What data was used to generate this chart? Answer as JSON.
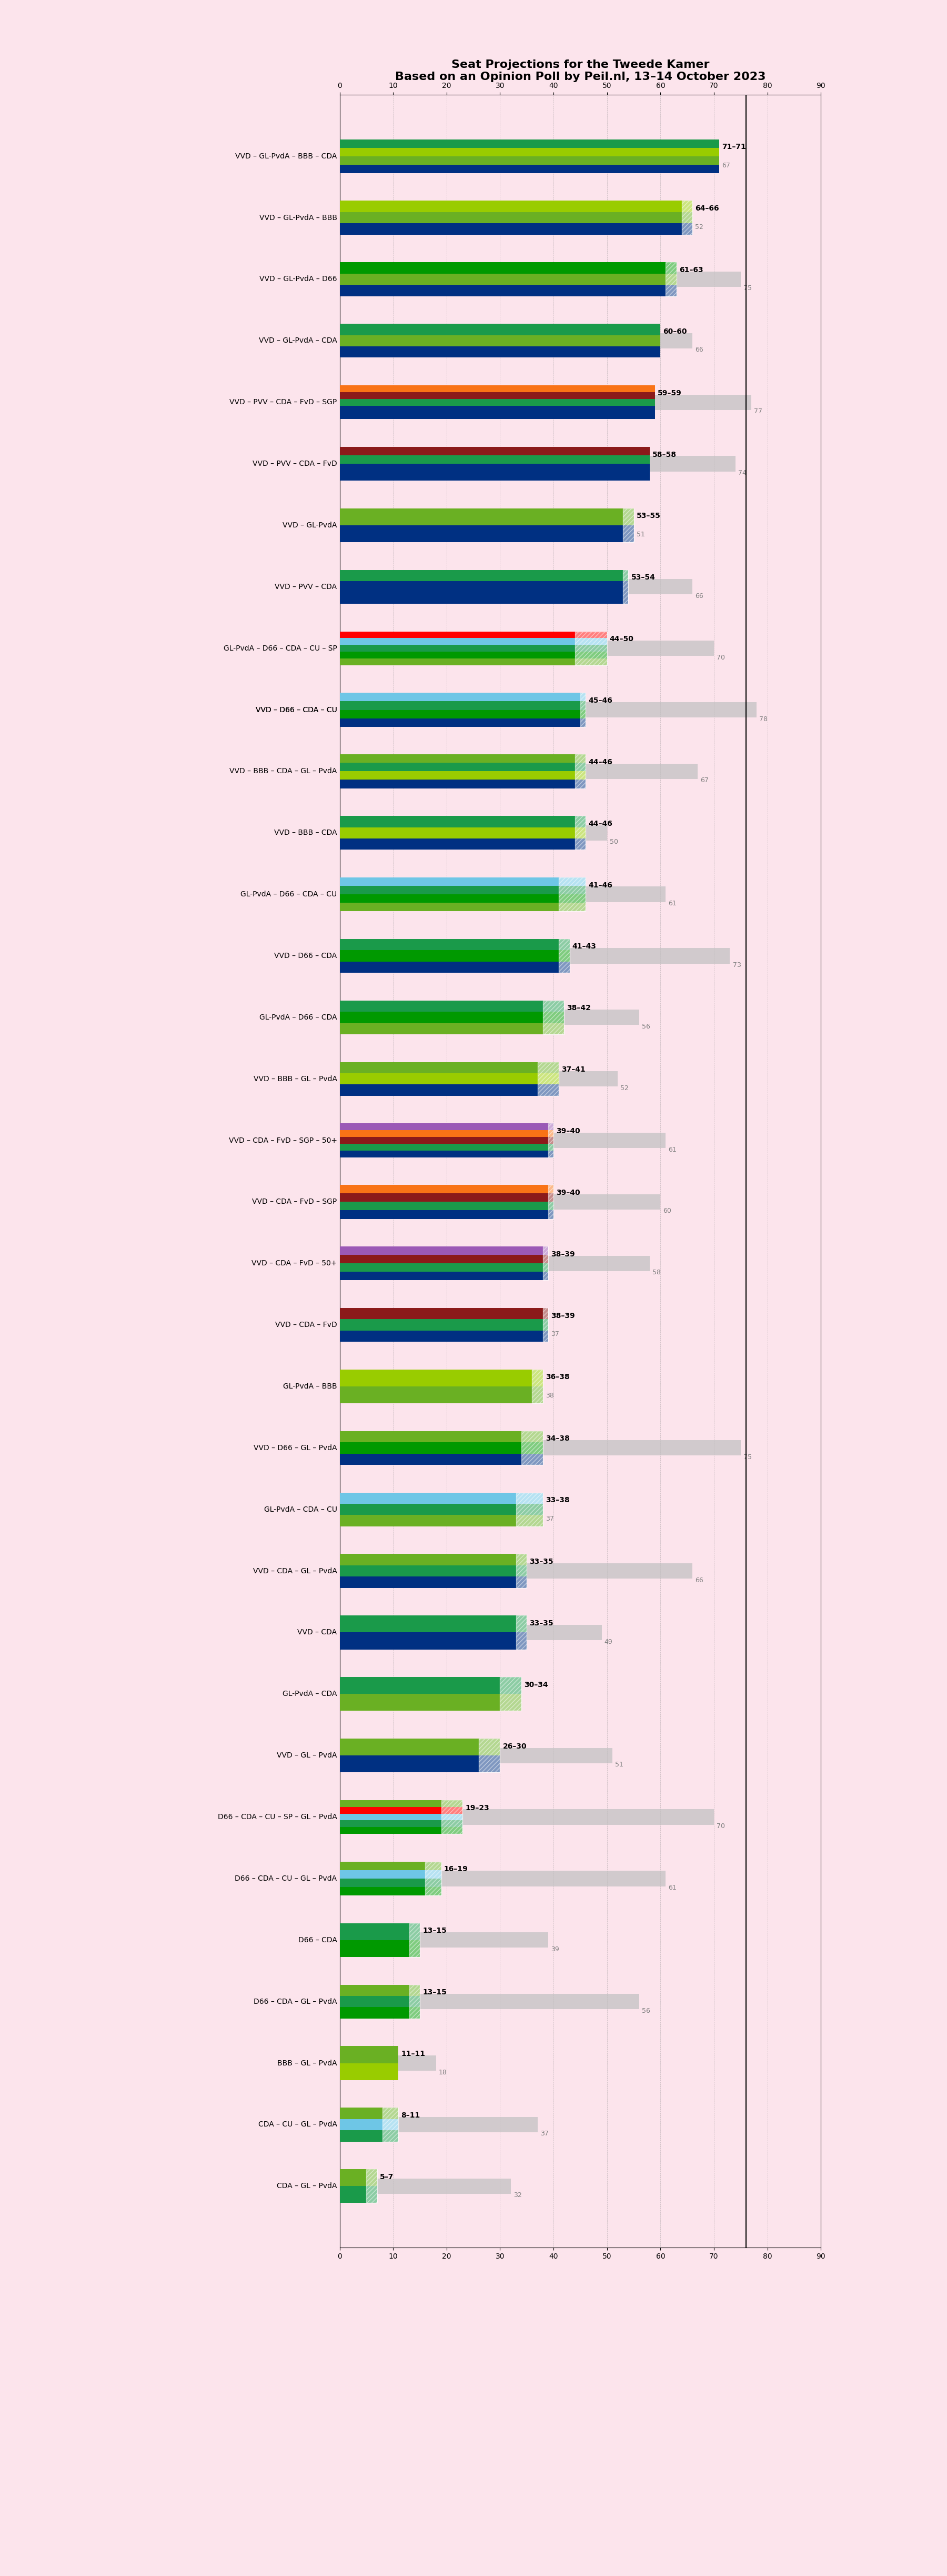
{
  "title": "Seat Projections for the Tweede Kamer",
  "subtitle": "Based on an Opinion Poll by Peil.nl, 13–14 October 2023",
  "background_color": "#fce4ec",
  "coalitions": [
    {
      "label": "VVD – GL-PvdA – BBB – CDA",
      "min": 71,
      "max": 71,
      "last": 67,
      "parties": [
        "VVD",
        "GL-PvdA",
        "BBB",
        "CDA"
      ],
      "underline": false
    },
    {
      "label": "VVD – GL-PvdA – BBB",
      "min": 64,
      "max": 66,
      "last": 52,
      "parties": [
        "VVD",
        "GL-PvdA",
        "BBB"
      ],
      "underline": false
    },
    {
      "label": "VVD – GL-PvdA – D66",
      "min": 61,
      "max": 63,
      "last": 75,
      "parties": [
        "VVD",
        "GL-PvdA",
        "D66"
      ],
      "underline": false
    },
    {
      "label": "VVD – GL-PvdA – CDA",
      "min": 60,
      "max": 60,
      "last": 66,
      "parties": [
        "VVD",
        "GL-PvdA",
        "CDA"
      ],
      "underline": false
    },
    {
      "label": "VVD – PVV – CDA – FvD – SGP",
      "min": 59,
      "max": 59,
      "last": 77,
      "parties": [
        "VVD",
        "PVV",
        "CDA",
        "FvD",
        "SGP"
      ],
      "underline": false
    },
    {
      "label": "VVD – PVV – CDA – FvD",
      "min": 58,
      "max": 58,
      "last": 74,
      "parties": [
        "VVD",
        "PVV",
        "CDA",
        "FvD"
      ],
      "underline": false
    },
    {
      "label": "VVD – GL-PvdA",
      "min": 53,
      "max": 55,
      "last": 51,
      "parties": [
        "VVD",
        "GL-PvdA"
      ],
      "underline": false
    },
    {
      "label": "VVD – PVV – CDA",
      "min": 53,
      "max": 54,
      "last": 66,
      "parties": [
        "VVD",
        "PVV",
        "CDA"
      ],
      "underline": false
    },
    {
      "label": "GL-PvdA – D66 – CDA – CU – SP",
      "min": 44,
      "max": 50,
      "last": 70,
      "parties": [
        "GL-PvdA",
        "D66",
        "CDA",
        "CU",
        "SP"
      ],
      "underline": false
    },
    {
      "label": "VVD – D66 – CDA – CU",
      "min": 45,
      "max": 46,
      "last": 78,
      "parties": [
        "VVD",
        "D66",
        "CDA",
        "CU"
      ],
      "underline": true
    },
    {
      "label": "VVD – BBB – CDA – GL – PvdA",
      "min": 44,
      "max": 46,
      "last": 67,
      "parties": [
        "VVD",
        "BBB",
        "CDA",
        "GL-PvdA"
      ],
      "underline": false
    },
    {
      "label": "VVD – BBB – CDA",
      "min": 44,
      "max": 46,
      "last": 50,
      "parties": [
        "VVD",
        "BBB",
        "CDA"
      ],
      "underline": false
    },
    {
      "label": "GL-PvdA – D66 – CDA – CU",
      "min": 41,
      "max": 46,
      "last": 61,
      "parties": [
        "GL-PvdA",
        "D66",
        "CDA",
        "CU"
      ],
      "underline": false
    },
    {
      "label": "VVD – D66 – CDA",
      "min": 41,
      "max": 43,
      "last": 73,
      "parties": [
        "VVD",
        "D66",
        "CDA"
      ],
      "underline": false
    },
    {
      "label": "GL-PvdA – D66 – CDA",
      "min": 38,
      "max": 42,
      "last": 56,
      "parties": [
        "GL-PvdA",
        "D66",
        "CDA"
      ],
      "underline": false
    },
    {
      "label": "VVD – BBB – GL – PvdA",
      "min": 37,
      "max": 41,
      "last": 52,
      "parties": [
        "VVD",
        "BBB",
        "GL-PvdA"
      ],
      "underline": false
    },
    {
      "label": "VVD – CDA – FvD – SGP – 50+",
      "min": 39,
      "max": 40,
      "last": 61,
      "parties": [
        "VVD",
        "CDA",
        "FvD",
        "SGP",
        "50+"
      ],
      "underline": false
    },
    {
      "label": "VVD – CDA – FvD – SGP",
      "min": 39,
      "max": 40,
      "last": 60,
      "parties": [
        "VVD",
        "CDA",
        "FvD",
        "SGP"
      ],
      "underline": false
    },
    {
      "label": "VVD – CDA – FvD – 50+",
      "min": 38,
      "max": 39,
      "last": 58,
      "parties": [
        "VVD",
        "CDA",
        "FvD",
        "50+"
      ],
      "underline": false
    },
    {
      "label": "VVD – CDA – FvD",
      "min": 38,
      "max": 39,
      "last": 37,
      "parties": [
        "VVD",
        "CDA",
        "FvD"
      ],
      "underline": false
    },
    {
      "label": "GL-PvdA – BBB",
      "min": 36,
      "max": 38,
      "last": 38,
      "parties": [
        "GL-PvdA",
        "BBB"
      ],
      "underline": false
    },
    {
      "label": "VVD – D66 – GL – PvdA",
      "min": 34,
      "max": 38,
      "last": 75,
      "parties": [
        "VVD",
        "D66",
        "GL-PvdA"
      ],
      "underline": false
    },
    {
      "label": "GL-PvdA – CDA – CU",
      "min": 33,
      "max": 38,
      "last": 37,
      "parties": [
        "GL-PvdA",
        "CDA",
        "CU"
      ],
      "underline": false
    },
    {
      "label": "VVD – CDA – GL – PvdA",
      "min": 33,
      "max": 35,
      "last": 66,
      "parties": [
        "VVD",
        "CDA",
        "GL-PvdA"
      ],
      "underline": false
    },
    {
      "label": "VVD – CDA",
      "min": 33,
      "max": 35,
      "last": 49,
      "parties": [
        "VVD",
        "CDA"
      ],
      "underline": false
    },
    {
      "label": "GL-PvdA – CDA",
      "min": 30,
      "max": 34,
      "last": 0,
      "parties": [
        "GL-PvdA",
        "CDA"
      ],
      "underline": false
    },
    {
      "label": "VVD – GL – PvdA",
      "min": 26,
      "max": 30,
      "last": 51,
      "parties": [
        "VVD",
        "GL-PvdA"
      ],
      "underline": false
    },
    {
      "label": "D66 – CDA – CU – SP – GL – PvdA",
      "min": 19,
      "max": 23,
      "last": 70,
      "parties": [
        "D66",
        "CDA",
        "CU",
        "SP",
        "GL-PvdA"
      ],
      "underline": false
    },
    {
      "label": "D66 – CDA – CU – GL – PvdA",
      "min": 16,
      "max": 19,
      "last": 61,
      "parties": [
        "D66",
        "CDA",
        "CU",
        "GL-PvdA"
      ],
      "underline": false
    },
    {
      "label": "D66 – CDA",
      "min": 13,
      "max": 15,
      "last": 39,
      "parties": [
        "D66",
        "CDA"
      ],
      "underline": false
    },
    {
      "label": "D66 – CDA – GL – PvdA",
      "min": 13,
      "max": 15,
      "last": 56,
      "parties": [
        "D66",
        "CDA",
        "GL-PvdA"
      ],
      "underline": false
    },
    {
      "label": "BBB – GL – PvdA",
      "min": 11,
      "max": 11,
      "last": 18,
      "parties": [
        "BBB",
        "GL-PvdA"
      ],
      "underline": false
    },
    {
      "label": "CDA – CU – GL – PvdA",
      "min": 8,
      "max": 11,
      "last": 37,
      "parties": [
        "CDA",
        "CU",
        "GL-PvdA"
      ],
      "underline": false
    },
    {
      "label": "CDA – GL – PvdA",
      "min": 5,
      "max": 7,
      "last": 32,
      "parties": [
        "CDA",
        "GL-PvdA"
      ],
      "underline": false
    }
  ],
  "party_colors": {
    "VVD": "#003082",
    "GL-PvdA": "#6ab023",
    "BBB": "#99cc00",
    "CDA": "#1a9a4a",
    "PVV": "#003082",
    "FvD": "#8b0000",
    "SGP": "#f97316",
    "D66": "#009900",
    "CU": "#6ec6e6",
    "SP": "#ff0000",
    "50+": "#9b59b6"
  },
  "majority_line": 76,
  "xmax": 90,
  "bar_height": 0.55,
  "conf_bar_height": 0.25
}
